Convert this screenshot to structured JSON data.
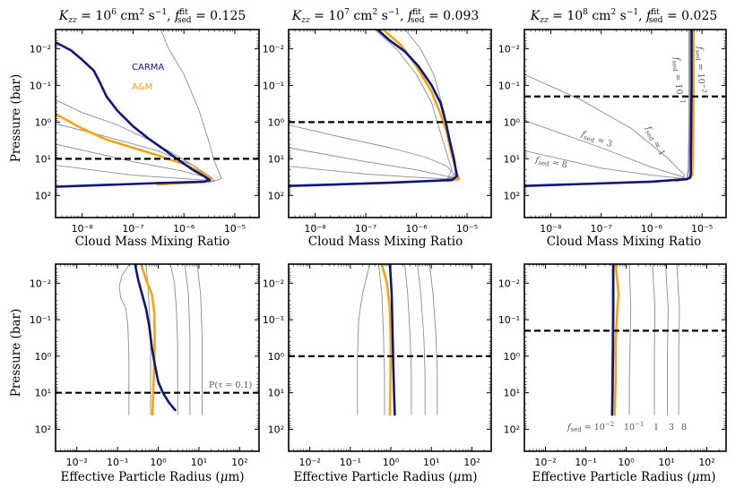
{
  "colors": {
    "carma": "#0d1580",
    "am": "#f5a30f",
    "grey": "#8c8c8c",
    "ref": "#000000"
  },
  "legend": {
    "carma": "CARMA",
    "am": "A&M"
  },
  "tick_labels": {
    "pressure": [
      "10⁻²",
      "10⁻¹",
      "10⁰",
      "10¹",
      "10²"
    ],
    "mmr": [
      "10⁻⁸",
      "10⁻⁷",
      "10⁻⁶",
      "10⁻⁵"
    ],
    "radius": [
      "10⁻²",
      "10⁻¹",
      "10⁰",
      "10¹",
      "10²"
    ]
  },
  "annotations": {
    "tau_label": "P(τ = 0.1)",
    "fsed_top": [
      "fsed = 10⁻²",
      "fsed = 10⁻¹"
    ],
    "fsed_mid": [
      "fsed = 1",
      "fsed = 3",
      "fsed = 8"
    ],
    "fsed_bottom": [
      "fsed = 10⁻²",
      "10⁻¹",
      "1",
      "3",
      "8"
    ]
  },
  "chart_data": [
    {
      "type": "line",
      "panel": "top-left",
      "title": "Kzz = 10⁶ cm² s⁻¹, f_sed^fit = 0.125",
      "xlabel": "Cloud Mass Mixing Ratio",
      "ylabel": "Pressure (bar)",
      "xscale": "log",
      "yscale": "log",
      "xlim": [
        3e-09,
        3e-05
      ],
      "ylim": [
        400,
        0.003
      ],
      "y_inverted": true,
      "ref_pressure": 10,
      "series": [
        {
          "name": "CARMA",
          "x": [
            3.2e-09,
            6e-09,
            1e-08,
            1.7e-08,
            2.2e-08,
            3e-08,
            5e-08,
            1e-07,
            2e-07,
            4e-07,
            8e-07,
            1.5e-06,
            2.5e-06,
            3.2e-06,
            2.6e-06,
            3e-07,
            3e-09
          ],
          "y": [
            0.007,
            0.011,
            0.02,
            0.04,
            0.08,
            0.2,
            0.5,
            1.3,
            2.8,
            5.5,
            11,
            20,
            30,
            38,
            42,
            46,
            58
          ]
        },
        {
          "name": "A&M",
          "x": [
            3e-09,
            1e-08,
            3e-08,
            1e-07,
            3e-07,
            1e-06,
            2e-06,
            3e-06,
            3.3e-06,
            2e-06,
            3e-07
          ],
          "y": [
            0.6,
            1.5,
            3,
            5,
            8,
            14,
            22,
            30,
            38,
            43,
            50
          ]
        },
        {
          "name": "fsed=0.01",
          "x": [
            3.5e-07,
            5e-07,
            1e-06,
            2e-06,
            3e-06,
            4e-06,
            5.5e-06,
            3e-06
          ],
          "y": [
            0.003,
            0.01,
            0.05,
            0.5,
            3,
            12,
            35,
            45
          ]
        },
        {
          "name": "fsed=0.1",
          "x": [
            3e-09,
            1e-08,
            5e-08,
            2e-07,
            6e-07,
            1.5e-06,
            3e-06,
            4e-06,
            2e-06
          ],
          "y": [
            0.25,
            0.55,
            1.2,
            3,
            7,
            15,
            28,
            40,
            44
          ]
        },
        {
          "name": "fsed=1",
          "x": [
            3e-09,
            3e-08,
            3e-07,
            1.5e-06,
            3.5e-06,
            2e-06
          ],
          "y": [
            1.1,
            2.5,
            6,
            15,
            33,
            42
          ]
        },
        {
          "name": "fsed=3",
          "x": [
            3e-09,
            1e-07,
            1e-06,
            3.5e-06,
            2e-06
          ],
          "y": [
            4,
            12,
            22,
            35,
            42
          ]
        },
        {
          "name": "fsed=8",
          "x": [
            3e-09,
            1e-07,
            1e-06,
            3.2e-06,
            2e-06
          ],
          "y": [
            15,
            28,
            35,
            39,
            42
          ]
        }
      ]
    },
    {
      "type": "line",
      "panel": "top-middle",
      "title": "Kzz = 10⁷ cm² s⁻¹, f_sed^fit = 0.093",
      "xlabel": "Cloud Mass Mixing Ratio",
      "ylabel": "",
      "xscale": "log",
      "yscale": "log",
      "xlim": [
        3e-09,
        3e-05
      ],
      "ylim": [
        400,
        0.003
      ],
      "y_inverted": true,
      "ref_pressure": 1,
      "series": [
        {
          "name": "CARMA",
          "x": [
            1.7e-07,
            3e-07,
            6e-07,
            1.1e-06,
            2e-06,
            3e-06,
            3.8e-06,
            4.5e-06,
            5.5e-06,
            6.3e-06,
            5e-06,
            3e-07,
            3e-09
          ],
          "y": [
            0.003,
            0.006,
            0.012,
            0.03,
            0.1,
            0.3,
            1,
            3,
            10,
            30,
            38,
            45,
            55
          ]
        },
        {
          "name": "A&M",
          "x": [
            2.2e-07,
            5e-07,
            1e-06,
            2e-06,
            3e-06,
            4e-06,
            5e-06,
            6.5e-06,
            7e-06,
            4e-06
          ],
          "y": [
            0.003,
            0.008,
            0.03,
            0.15,
            0.6,
            2,
            8,
            28,
            36,
            40
          ]
        },
        {
          "name": "fsed=0.01",
          "x": [
            1.5e-07,
            4e-07,
            1e-06,
            2e-06,
            3e-06,
            5e-06,
            4e-06
          ],
          "y": [
            0.003,
            0.01,
            0.05,
            0.3,
            2,
            20,
            38
          ]
        },
        {
          "name": "fsed=0.1",
          "x": [
            6e-07,
            1.2e-06,
            2.2e-06,
            3.5e-06,
            5e-06,
            6e-06,
            4e-06
          ],
          "y": [
            0.003,
            0.01,
            0.05,
            0.5,
            5,
            25,
            38
          ]
        },
        {
          "name": "fsed=1",
          "x": [
            3e-09,
            3e-08,
            3e-07,
            1.5e-06,
            4e-06,
            6e-06,
            4e-06
          ],
          "y": [
            1.2,
            2.5,
            5,
            9,
            16,
            30,
            38
          ]
        },
        {
          "name": "fsed=3",
          "x": [
            3e-09,
            1e-07,
            1e-06,
            5e-06,
            3e-06
          ],
          "y": [
            5,
            12,
            20,
            32,
            38
          ]
        },
        {
          "name": "fsed=8",
          "x": [
            3e-09,
            1e-07,
            1e-06,
            5e-06,
            3e-06
          ],
          "y": [
            16,
            26,
            32,
            36,
            39
          ]
        }
      ]
    },
    {
      "type": "line",
      "panel": "top-right",
      "title": "Kzz = 10⁸ cm² s⁻¹, f_sed^fit = 0.025",
      "xlabel": "Cloud Mass Mixing Ratio",
      "ylabel": "",
      "xscale": "log",
      "yscale": "log",
      "xlim": [
        3e-09,
        3e-05
      ],
      "ylim": [
        400,
        0.003
      ],
      "y_inverted": true,
      "ref_pressure": 0.2,
      "series": [
        {
          "name": "CARMA",
          "x": [
            6.2e-06,
            6.2e-06,
            6.1e-06,
            6e-06,
            6e-06,
            5.8e-06,
            5e-06,
            1e-06,
            3e-09
          ],
          "y": [
            0.003,
            0.1,
            1,
            10,
            25,
            33,
            36,
            42,
            55
          ]
        },
        {
          "name": "A&M",
          "x": [
            6.8e-06,
            6.8e-06,
            6.7e-06,
            6.6e-06,
            6.4e-06,
            5e-06,
            3e-06
          ],
          "y": [
            0.003,
            0.1,
            1,
            10,
            28,
            36,
            40
          ]
        },
        {
          "name": "fsed=0.01",
          "x": [
            5.5e-06,
            5.5e-06,
            5.3e-06,
            5e-06,
            4e-06
          ],
          "y": [
            0.003,
            1,
            20,
            33,
            38
          ]
        },
        {
          "name": "fsed=0.1",
          "x": [
            5.7e-06,
            5.7e-06,
            5.5e-06,
            5.2e-06,
            4e-06
          ],
          "y": [
            0.003,
            1,
            20,
            33,
            38
          ]
        },
        {
          "name": "fsed=1",
          "x": [
            3e-09,
            4e-08,
            4e-07,
            2e-06,
            4.5e-06,
            4e-06
          ],
          "y": [
            0.05,
            0.25,
            1.5,
            9,
            28,
            36
          ]
        },
        {
          "name": "fsed=3",
          "x": [
            3e-09,
            1e-07,
            1e-06,
            4.5e-06,
            3e-06
          ],
          "y": [
            0.9,
            5,
            17,
            32,
            38
          ]
        },
        {
          "name": "fsed=8",
          "x": [
            3e-09,
            1e-07,
            1e-06,
            4.5e-06,
            3e-06
          ],
          "y": [
            6,
            18,
            28,
            35,
            39
          ]
        }
      ]
    },
    {
      "type": "line",
      "panel": "bottom-left",
      "title": "",
      "xlabel": "Effective Particle Radius (μm)",
      "ylabel": "Pressure (bar)",
      "xscale": "log",
      "yscale": "log",
      "xlim": [
        0.003,
        300
      ],
      "ylim": [
        400,
        0.003
      ],
      "y_inverted": true,
      "ref_pressure": 10,
      "series": [
        {
          "name": "CARMA",
          "x": [
            0.27,
            0.32,
            0.4,
            0.5,
            0.6,
            0.7,
            0.85,
            1.0,
            1.3,
            1.8,
            2.6
          ],
          "y": [
            0.003,
            0.008,
            0.02,
            0.05,
            0.15,
            0.6,
            2,
            5,
            10,
            18,
            30
          ]
        },
        {
          "name": "A&M",
          "x": [
            0.38,
            0.5,
            0.7,
            0.8,
            0.82,
            0.8,
            0.75,
            0.72
          ],
          "y": [
            0.003,
            0.008,
            0.02,
            0.06,
            0.3,
            2,
            10,
            40
          ]
        },
        {
          "name": "fsed=0.01",
          "x": [
            0.2,
            0.13,
            0.11,
            0.12,
            0.16,
            0.18,
            0.19,
            0.19
          ],
          "y": [
            0.003,
            0.006,
            0.012,
            0.025,
            0.05,
            0.15,
            1,
            40
          ]
        },
        {
          "name": "fsed=0.1",
          "x": [
            0.5,
            0.55,
            0.6,
            0.65,
            0.65,
            0.65
          ],
          "y": [
            0.003,
            0.01,
            0.05,
            0.3,
            3,
            40
          ]
        },
        {
          "name": "fsed=1",
          "x": [
            2.0,
            2.5,
            2.8,
            3.0,
            3.0
          ],
          "y": [
            0.003,
            0.01,
            0.05,
            0.5,
            40
          ]
        },
        {
          "name": "fsed=3",
          "x": [
            4.5,
            5.5,
            6.0,
            6.0
          ],
          "y": [
            0.003,
            0.02,
            0.3,
            40
          ]
        },
        {
          "name": "fsed=8",
          "x": [
            9.0,
            11,
            12,
            12
          ],
          "y": [
            0.003,
            0.02,
            0.3,
            40
          ]
        }
      ]
    },
    {
      "type": "line",
      "panel": "bottom-middle",
      "title": "",
      "xlabel": "Effective Particle Radius (μm)",
      "ylabel": "",
      "xscale": "log",
      "yscale": "log",
      "xlim": [
        0.003,
        300
      ],
      "ylim": [
        400,
        0.003
      ],
      "y_inverted": true,
      "ref_pressure": 1,
      "series": [
        {
          "name": "CARMA",
          "x": [
            0.95,
            1.05,
            1.1,
            1.15,
            1.2,
            1.25
          ],
          "y": [
            0.003,
            0.02,
            0.2,
            2,
            10,
            40
          ]
        },
        {
          "name": "A&M",
          "x": [
            0.6,
            0.8,
            0.95,
            1.0,
            0.98,
            0.95
          ],
          "y": [
            0.003,
            0.01,
            0.05,
            0.5,
            5,
            40
          ]
        },
        {
          "name": "fsed=0.01",
          "x": [
            0.3,
            0.2,
            0.16,
            0.15,
            0.15
          ],
          "y": [
            0.003,
            0.02,
            0.1,
            1,
            40
          ]
        },
        {
          "name": "fsed=0.1",
          "x": [
            0.5,
            0.6,
            0.65,
            0.7,
            0.7
          ],
          "y": [
            0.003,
            0.02,
            0.2,
            3,
            40
          ]
        },
        {
          "name": "fsed=1",
          "x": [
            2.2,
            2.6,
            3.0,
            3.2,
            3.2
          ],
          "y": [
            0.003,
            0.02,
            0.3,
            3,
            40
          ]
        },
        {
          "name": "fsed=3",
          "x": [
            4.5,
            5.5,
            6.5,
            7,
            7
          ],
          "y": [
            0.003,
            0.02,
            0.3,
            3,
            40
          ]
        },
        {
          "name": "fsed=8",
          "x": [
            9,
            11,
            13,
            14,
            14
          ],
          "y": [
            0.003,
            0.02,
            0.3,
            3,
            40
          ]
        }
      ]
    },
    {
      "type": "line",
      "panel": "bottom-right",
      "title": "",
      "xlabel": "Effective Particle Radius (μm)",
      "ylabel": "",
      "xscale": "log",
      "yscale": "log",
      "xlim": [
        0.003,
        300
      ],
      "ylim": [
        400,
        0.003
      ],
      "y_inverted": true,
      "ref_pressure": 0.2,
      "series": [
        {
          "name": "CARMA",
          "x": [
            0.48,
            0.48,
            0.47,
            0.46,
            0.45
          ],
          "y": [
            0.003,
            0.05,
            1,
            10,
            40
          ]
        },
        {
          "name": "A&M",
          "x": [
            0.55,
            0.65,
            0.6,
            0.55,
            0.55,
            0.52
          ],
          "y": [
            0.003,
            0.02,
            0.06,
            0.5,
            5,
            40
          ]
        },
        {
          "name": "fsed=0.01",
          "x": [
            0.45,
            0.45,
            0.44,
            0.43
          ],
          "y": [
            0.003,
            0.1,
            2,
            40
          ]
        },
        {
          "name": "fsed=0.1",
          "x": [
            1.2,
            1.3,
            1.25,
            1.2,
            1.2
          ],
          "y": [
            0.003,
            0.05,
            0.5,
            5,
            40
          ]
        },
        {
          "name": "fsed=1",
          "x": [
            4.5,
            5.2,
            5.0,
            5.0
          ],
          "y": [
            0.003,
            0.05,
            1,
            40
          ]
        },
        {
          "name": "fsed=3",
          "x": [
            9.5,
            11,
            10.5,
            10.5
          ],
          "y": [
            0.003,
            0.05,
            1,
            40
          ]
        },
        {
          "name": "fsed=8",
          "x": [
            18,
            21,
            20,
            20
          ],
          "y": [
            0.003,
            0.05,
            1,
            40
          ]
        }
      ]
    }
  ]
}
